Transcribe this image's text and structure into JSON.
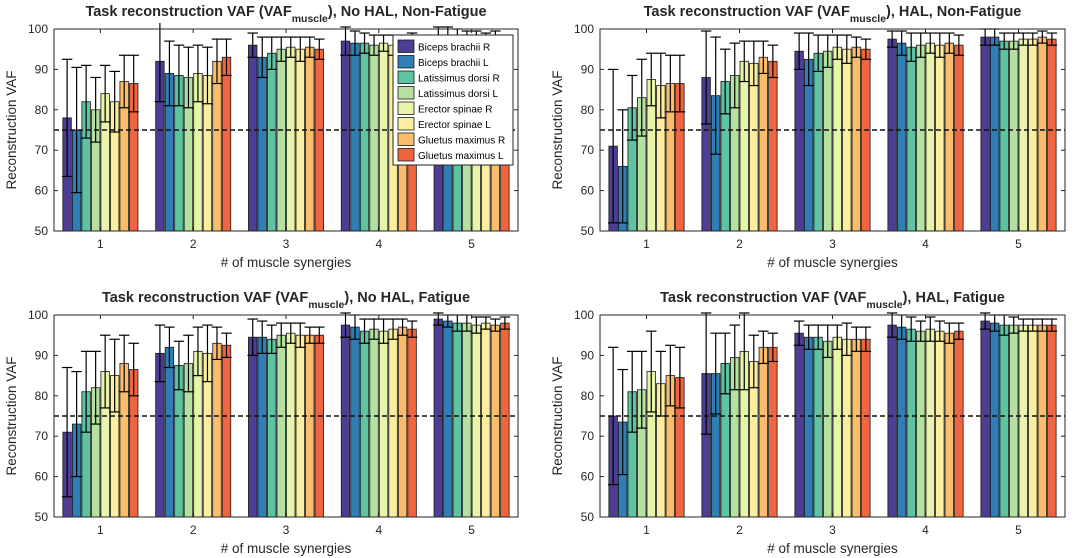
{
  "legend": [
    {
      "name": "Biceps brachii R",
      "color": "#4d3e94"
    },
    {
      "name": "Biceps brachii L",
      "color": "#2f7fb6"
    },
    {
      "name": "Latissimus dorsi R",
      "color": "#5ec3a0"
    },
    {
      "name": "Latissimus dorsi L",
      "color": "#b4e1a0"
    },
    {
      "name": "Erector spinae R",
      "color": "#e8f4a9"
    },
    {
      "name": "Erector spinae L",
      "color": "#fbeea0"
    },
    {
      "name": "Gluetus maximus R",
      "color": "#fbbd6c"
    },
    {
      "name": "Gluetus maximus L",
      "color": "#f0653f"
    }
  ],
  "chart_data": [
    {
      "type": "bar",
      "title_pre": "Task reconstruction VAF (VAF",
      "title_sub": "muscle",
      "title_post": "), No HAL, Non-Fatigue",
      "xlabel": "# of muscle synergies",
      "ylabel": "Reconstruction VAF",
      "categories": [
        "1",
        "2",
        "3",
        "4",
        "5"
      ],
      "ylim": [
        50,
        100
      ],
      "yticks": [
        50,
        60,
        70,
        80,
        90,
        100
      ],
      "threshold": 75,
      "show_legend": true,
      "values": [
        [
          78,
          75,
          82,
          80,
          84,
          82,
          87,
          86.5
        ],
        [
          92,
          89,
          88.5,
          88,
          89,
          88.5,
          92,
          93
        ],
        [
          96,
          93,
          94,
          95,
          95.5,
          95,
          95.5,
          95
        ],
        [
          97,
          96.5,
          96.5,
          96,
          96.5,
          96,
          96.5,
          97
        ],
        [
          98.5,
          98,
          98,
          97.5,
          98,
          97.5,
          97.5,
          97
        ]
      ],
      "errors": [
        [
          14.5,
          15.5,
          9,
          8,
          7,
          7.5,
          6.5,
          7
        ],
        [
          10,
          8,
          7.5,
          7.5,
          7,
          7,
          5.5,
          4.5
        ],
        [
          3,
          5,
          4,
          3,
          2.5,
          3,
          2.5,
          2.5
        ],
        [
          3.5,
          3,
          2.5,
          2.5,
          2,
          2.5,
          2,
          2
        ],
        [
          2,
          2.5,
          2,
          2,
          1.5,
          1.5,
          2,
          1.5
        ]
      ]
    },
    {
      "type": "bar",
      "title_pre": "Task reconstruction VAF (VAF",
      "title_sub": "muscle",
      "title_post": "), HAL, Non-Fatigue",
      "xlabel": "# of muscle synergies",
      "ylabel": "Reconstruction VAF",
      "categories": [
        "1",
        "2",
        "3",
        "4",
        "5"
      ],
      "ylim": [
        50,
        100
      ],
      "yticks": [
        50,
        60,
        70,
        80,
        90,
        100
      ],
      "threshold": 75,
      "show_legend": false,
      "values": [
        [
          71,
          66,
          80.5,
          83,
          87.5,
          86,
          86.5,
          86.5
        ],
        [
          88,
          83.5,
          87,
          88.5,
          92,
          91.5,
          93,
          92
        ],
        [
          94.5,
          92.5,
          94,
          94.5,
          95.5,
          95,
          95.5,
          95
        ],
        [
          97.5,
          96.5,
          95.5,
          96,
          96.5,
          96,
          96.5,
          96
        ],
        [
          98,
          98,
          97,
          97,
          97.5,
          97.5,
          98,
          97.5
        ]
      ],
      "errors": [
        [
          19,
          14,
          8,
          9.5,
          6.5,
          8,
          7,
          7
        ],
        [
          11.5,
          14.5,
          8,
          8,
          5,
          5.5,
          4,
          4
        ],
        [
          4.5,
          6.5,
          4.5,
          4,
          3,
          3.5,
          2.5,
          2.5
        ],
        [
          2,
          3,
          3.5,
          3,
          2.5,
          3,
          2.5,
          2.5
        ],
        [
          2,
          2,
          2,
          2,
          1.5,
          1.5,
          1.5,
          1.5
        ]
      ]
    },
    {
      "type": "bar",
      "title_pre": "Task reconstruction VAF (VAF",
      "title_sub": "muscle",
      "title_post": "), No HAL, Fatigue",
      "xlabel": "# of muscle synergies",
      "ylabel": "Reconstruction VAF",
      "categories": [
        "1",
        "2",
        "3",
        "4",
        "5"
      ],
      "ylim": [
        50,
        100
      ],
      "yticks": [
        50,
        60,
        70,
        80,
        90,
        100
      ],
      "threshold": 75,
      "show_legend": false,
      "values": [
        [
          71,
          73,
          81,
          82,
          86,
          85,
          88,
          86.5
        ],
        [
          90.5,
          92,
          87.5,
          88,
          91,
          90.5,
          93,
          92.5
        ],
        [
          94.5,
          94.5,
          94,
          95,
          95.5,
          95,
          95,
          95
        ],
        [
          97.5,
          97,
          96,
          96.5,
          96,
          96.5,
          97,
          96.5
        ],
        [
          99,
          98.5,
          98,
          98,
          97.5,
          98,
          97.5,
          98
        ]
      ],
      "errors": [
        [
          16,
          13,
          10,
          9,
          9,
          9,
          7,
          6.5
        ],
        [
          7,
          5,
          6,
          7,
          6,
          7,
          4,
          3
        ],
        [
          4.5,
          4,
          3.5,
          3,
          2.5,
          3,
          2,
          2
        ],
        [
          3,
          3,
          3,
          2.5,
          3,
          2.5,
          2,
          2
        ],
        [
          1.5,
          1.5,
          2,
          2,
          2,
          1.5,
          1.5,
          1.5
        ]
      ]
    },
    {
      "type": "bar",
      "title_pre": "Task reconstruction VAF (VAF",
      "title_sub": "muscle",
      "title_post": "), HAL, Fatigue",
      "xlabel": "# of muscle synergies",
      "ylabel": "Reconstruction VAF",
      "categories": [
        "1",
        "2",
        "3",
        "4",
        "5"
      ],
      "ylim": [
        50,
        100
      ],
      "yticks": [
        50,
        60,
        70,
        80,
        90,
        100
      ],
      "threshold": 75,
      "show_legend": false,
      "values": [
        [
          75,
          73.5,
          81,
          81.5,
          86,
          83,
          85,
          84.5
        ],
        [
          85.5,
          85.5,
          88,
          89.5,
          91,
          88.5,
          92,
          92
        ],
        [
          95.5,
          94.5,
          94.5,
          93.5,
          94.5,
          94,
          94,
          94
        ],
        [
          97.5,
          97,
          96.5,
          96,
          96.5,
          96,
          95.5,
          96
        ],
        [
          98.5,
          98,
          97.5,
          97.5,
          97.5,
          97.5,
          97.5,
          97.5
        ]
      ],
      "errors": [
        [
          17,
          13,
          10,
          9.5,
          10,
          8,
          7.5,
          7.5
        ],
        [
          15,
          10,
          7.5,
          8,
          9.5,
          6.5,
          4,
          3.5
        ],
        [
          3,
          3,
          3,
          4,
          3,
          4,
          3,
          3
        ],
        [
          3,
          3,
          3,
          2.5,
          3,
          2.5,
          2.5,
          2
        ],
        [
          2,
          2,
          2.5,
          2,
          1.5,
          1.5,
          1.5,
          1.5
        ]
      ]
    }
  ]
}
